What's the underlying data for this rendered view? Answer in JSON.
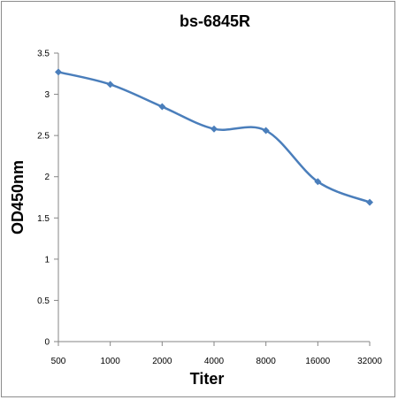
{
  "chart_data": {
    "type": "line",
    "title": "bs-6845R",
    "xlabel": "Titer",
    "ylabel": "OD450nm",
    "categories": [
      "500",
      "1000",
      "2000",
      "4000",
      "8000",
      "16000",
      "32000"
    ],
    "series": [
      {
        "values": [
          3.27,
          3.12,
          2.85,
          2.58,
          2.56,
          1.94,
          1.69
        ],
        "color": "#4a7ebb",
        "marker": "diamond"
      }
    ],
    "ylim": [
      0,
      3.5
    ],
    "yticks": [
      "0",
      "0.5",
      "1",
      "1.5",
      "2",
      "2.5",
      "3",
      "3.5"
    ],
    "grid": false,
    "legend": "none",
    "smooth": true
  }
}
